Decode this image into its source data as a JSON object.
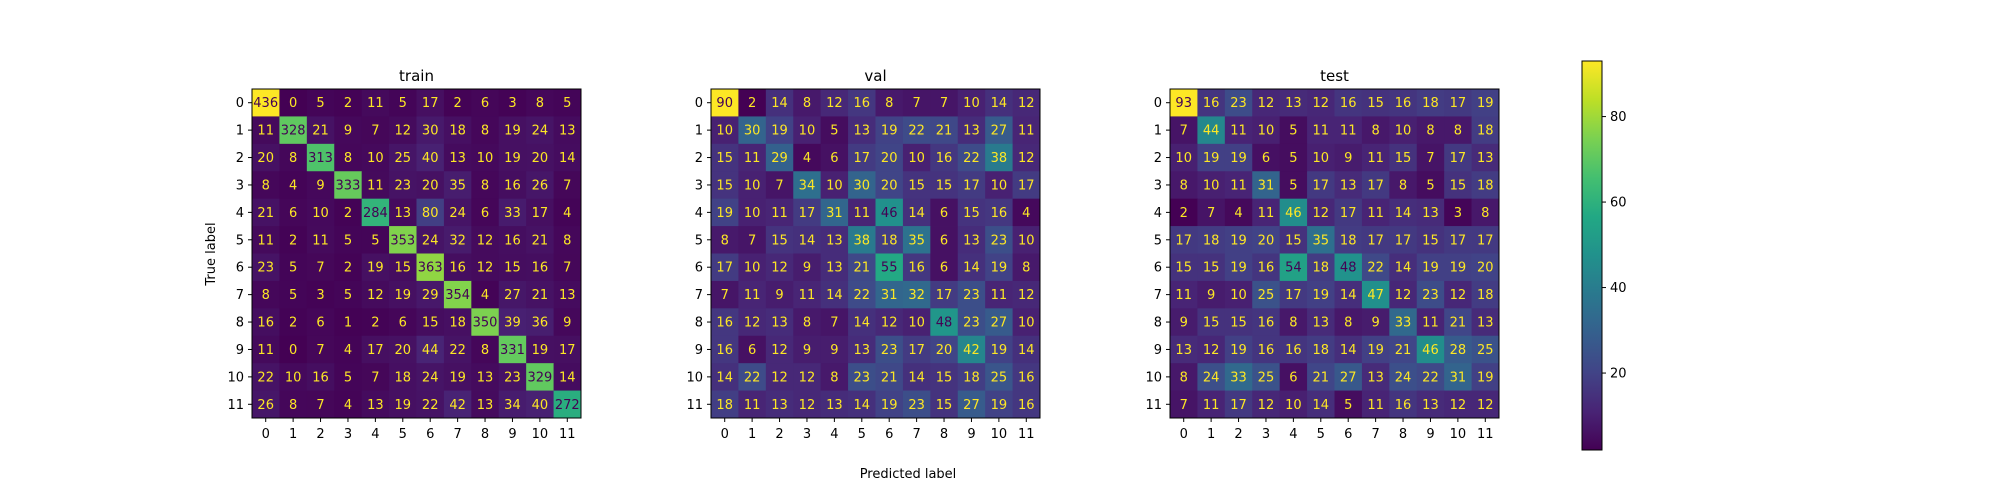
{
  "figure": {
    "xlabel": "Predicted label",
    "ylabel": "True label"
  },
  "chart_data": [
    {
      "type": "heatmap",
      "title": "train",
      "x_ticks": [
        "0",
        "1",
        "2",
        "3",
        "4",
        "5",
        "6",
        "7",
        "8",
        "9",
        "10",
        "11"
      ],
      "y_ticks": [
        "0",
        "1",
        "2",
        "3",
        "4",
        "5",
        "6",
        "7",
        "8",
        "9",
        "10",
        "11"
      ],
      "values": [
        [
          436,
          0,
          5,
          2,
          11,
          5,
          17,
          2,
          6,
          3,
          8,
          5
        ],
        [
          11,
          328,
          21,
          9,
          7,
          12,
          30,
          18,
          8,
          19,
          24,
          13
        ],
        [
          20,
          8,
          313,
          8,
          10,
          25,
          40,
          13,
          10,
          19,
          20,
          14
        ],
        [
          8,
          4,
          9,
          333,
          11,
          23,
          20,
          35,
          8,
          16,
          26,
          7
        ],
        [
          21,
          6,
          10,
          2,
          284,
          13,
          80,
          24,
          6,
          33,
          17,
          4
        ],
        [
          11,
          2,
          11,
          5,
          5,
          353,
          24,
          32,
          12,
          16,
          21,
          8
        ],
        [
          23,
          5,
          7,
          2,
          19,
          15,
          363,
          16,
          12,
          15,
          16,
          7
        ],
        [
          8,
          5,
          3,
          5,
          12,
          19,
          29,
          354,
          4,
          27,
          21,
          13
        ],
        [
          16,
          2,
          6,
          1,
          2,
          6,
          15,
          18,
          350,
          39,
          36,
          9
        ],
        [
          11,
          0,
          7,
          4,
          17,
          20,
          44,
          22,
          8,
          331,
          19,
          17
        ],
        [
          22,
          10,
          16,
          5,
          7,
          18,
          24,
          19,
          13,
          23,
          329,
          14
        ],
        [
          26,
          8,
          7,
          4,
          13,
          19,
          22,
          42,
          13,
          34,
          40,
          272
        ]
      ]
    },
    {
      "type": "heatmap",
      "title": "val",
      "x_ticks": [
        "0",
        "1",
        "2",
        "3",
        "4",
        "5",
        "6",
        "7",
        "8",
        "9",
        "10",
        "11"
      ],
      "y_ticks": [
        "0",
        "1",
        "2",
        "3",
        "4",
        "5",
        "6",
        "7",
        "8",
        "9",
        "10",
        "11"
      ],
      "values": [
        [
          90,
          2,
          14,
          8,
          12,
          16,
          8,
          7,
          7,
          10,
          14,
          12
        ],
        [
          10,
          30,
          19,
          10,
          5,
          13,
          19,
          22,
          21,
          13,
          27,
          11
        ],
        [
          15,
          11,
          29,
          4,
          6,
          17,
          20,
          10,
          16,
          22,
          38,
          12
        ],
        [
          15,
          10,
          7,
          34,
          10,
          30,
          20,
          15,
          15,
          17,
          10,
          17
        ],
        [
          19,
          10,
          11,
          17,
          31,
          11,
          46,
          14,
          6,
          15,
          16,
          4
        ],
        [
          8,
          7,
          15,
          14,
          13,
          38,
          18,
          35,
          6,
          13,
          23,
          10
        ],
        [
          17,
          10,
          12,
          9,
          13,
          21,
          55,
          16,
          6,
          14,
          19,
          8
        ],
        [
          7,
          11,
          9,
          11,
          14,
          22,
          31,
          32,
          17,
          23,
          11,
          12
        ],
        [
          16,
          12,
          13,
          8,
          7,
          14,
          12,
          10,
          48,
          23,
          27,
          10
        ],
        [
          16,
          6,
          12,
          9,
          9,
          13,
          23,
          17,
          20,
          42,
          19,
          14
        ],
        [
          14,
          22,
          12,
          12,
          8,
          23,
          21,
          14,
          15,
          18,
          25,
          16
        ],
        [
          18,
          11,
          13,
          12,
          13,
          14,
          19,
          23,
          15,
          27,
          19,
          16
        ]
      ]
    },
    {
      "type": "heatmap",
      "title": "test",
      "x_ticks": [
        "0",
        "1",
        "2",
        "3",
        "4",
        "5",
        "6",
        "7",
        "8",
        "9",
        "10",
        "11"
      ],
      "y_ticks": [
        "0",
        "1",
        "2",
        "3",
        "4",
        "5",
        "6",
        "7",
        "8",
        "9",
        "10",
        "11"
      ],
      "values": [
        [
          93,
          16,
          23,
          12,
          13,
          12,
          16,
          15,
          16,
          18,
          17,
          19
        ],
        [
          7,
          44,
          11,
          10,
          5,
          11,
          11,
          8,
          10,
          8,
          8,
          18
        ],
        [
          10,
          19,
          19,
          6,
          5,
          10,
          9,
          11,
          15,
          7,
          17,
          13
        ],
        [
          8,
          10,
          11,
          31,
          5,
          17,
          13,
          17,
          8,
          5,
          15,
          18
        ],
        [
          2,
          7,
          4,
          11,
          46,
          12,
          17,
          11,
          14,
          13,
          3,
          8
        ],
        [
          17,
          18,
          19,
          20,
          15,
          35,
          18,
          17,
          17,
          15,
          17,
          17
        ],
        [
          15,
          15,
          19,
          16,
          54,
          18,
          48,
          22,
          14,
          19,
          19,
          20
        ],
        [
          11,
          9,
          10,
          25,
          17,
          19,
          14,
          47,
          12,
          23,
          12,
          18
        ],
        [
          9,
          15,
          15,
          16,
          8,
          13,
          8,
          9,
          33,
          11,
          21,
          13
        ],
        [
          13,
          12,
          19,
          16,
          16,
          18,
          14,
          19,
          21,
          46,
          28,
          25
        ],
        [
          8,
          24,
          33,
          25,
          6,
          21,
          27,
          13,
          24,
          22,
          31,
          19
        ],
        [
          7,
          11,
          17,
          12,
          10,
          14,
          5,
          11,
          16,
          13,
          12,
          12
        ]
      ]
    }
  ],
  "colorbar": {
    "ticks": [
      20,
      40,
      60,
      80
    ],
    "vmin": 2,
    "vmax": 93,
    "colormap": "viridis"
  }
}
